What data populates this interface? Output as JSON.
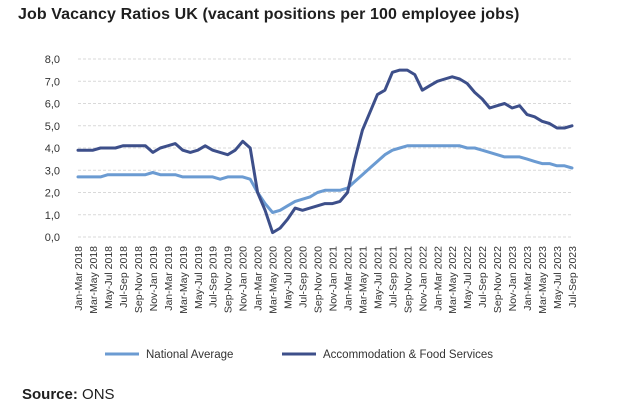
{
  "title": "Job Vacancy Ratios UK (vacant positions per 100 employee jobs)",
  "source": {
    "label": "Source:",
    "value": "ONS"
  },
  "chart_data": {
    "type": "line",
    "title": "Job Vacancy Ratios UK (vacant positions per 100 employee jobs)",
    "xlabel": "",
    "ylabel": "",
    "ylim": [
      0,
      8
    ],
    "yticks": [
      "0,0",
      "1,0",
      "2,0",
      "3,0",
      "4,0",
      "5,0",
      "6,0",
      "7,0",
      "8,0"
    ],
    "grid": true,
    "legend": "bottom",
    "categories": [
      "Jan-Mar 2018",
      "Mar-May 2018",
      "May-Jul 2018",
      "Jul-Sep 2018",
      "Sep-Nov 2018",
      "Nov-Jan 2019",
      "Jan-Mar 2019",
      "Mar-May 2019",
      "May-Jul 2019",
      "Jul-Sep 2019",
      "Sep-Nov 2019",
      "Nov-Jan 2020",
      "Jan-Mar 2020",
      "Mar-May 2020",
      "May-Jul 2020",
      "Jul-Sep 2020",
      "Sep-Nov 2020",
      "Nov-Jan 2021",
      "Jan-Mar 2021",
      "Mar-May 2021",
      "May-Jul 2021",
      "Jul-Sep 2021",
      "Sep-Nov 2021",
      "Nov-Jan 2022",
      "Jan-Mar 2022",
      "Mar-May 2022",
      "May-Jul 2022",
      "Jul-Sep 2022",
      "Sep-Nov 2022",
      "Nov-Jan 2023",
      "Jan-Mar 2023",
      "Mar-May 2023",
      "May-Jul 2023",
      "Jul-Sep 2023"
    ],
    "x": [
      0,
      1,
      2,
      3,
      4,
      5,
      6,
      7,
      8,
      9,
      10,
      11,
      12,
      13,
      14,
      15,
      16,
      17,
      18,
      19,
      20,
      21,
      22,
      23,
      24,
      25,
      26,
      27,
      28,
      29,
      30,
      31,
      32,
      33
    ],
    "series": [
      {
        "name": "National Average",
        "color": "#6b9bd2",
        "x": [
          0,
          0.5,
          1,
          1.5,
          2,
          2.5,
          3,
          3.5,
          4,
          4.5,
          5,
          5.5,
          6,
          6.5,
          7,
          7.5,
          8,
          8.5,
          9,
          9.5,
          10,
          10.5,
          11,
          11.5,
          12,
          12.5,
          13,
          13.5,
          14,
          14.5,
          15,
          15.5,
          16,
          16.5,
          17,
          17.5,
          18,
          18.5,
          19,
          19.5,
          20,
          20.5,
          21,
          21.5,
          22,
          22.5,
          23,
          23.5,
          24,
          24.5,
          25,
          25.5,
          26,
          26.5,
          27,
          27.5,
          28,
          28.5,
          29,
          29.5,
          30,
          30.5,
          31,
          31.5,
          32,
          32.5,
          33
        ],
        "values": [
          2.7,
          2.7,
          2.7,
          2.7,
          2.8,
          2.8,
          2.8,
          2.8,
          2.8,
          2.8,
          2.9,
          2.8,
          2.8,
          2.8,
          2.7,
          2.7,
          2.7,
          2.7,
          2.7,
          2.6,
          2.7,
          2.7,
          2.7,
          2.6,
          2.0,
          1.5,
          1.1,
          1.2,
          1.4,
          1.6,
          1.7,
          1.8,
          2.0,
          2.1,
          2.1,
          2.1,
          2.2,
          2.5,
          2.8,
          3.1,
          3.4,
          3.7,
          3.9,
          4.0,
          4.1,
          4.1,
          4.1,
          4.1,
          4.1,
          4.1,
          4.1,
          4.1,
          4.0,
          4.0,
          3.9,
          3.8,
          3.7,
          3.6,
          3.6,
          3.6,
          3.5,
          3.4,
          3.3,
          3.3,
          3.2,
          3.2,
          3.1
        ]
      },
      {
        "name": "Accommodation & Food Services",
        "color": "#3d4f8a",
        "x": [
          0,
          0.5,
          1,
          1.5,
          2,
          2.5,
          3,
          3.5,
          4,
          4.5,
          5,
          5.5,
          6,
          6.5,
          7,
          7.5,
          8,
          8.5,
          9,
          9.5,
          10,
          10.5,
          11,
          11.5,
          12,
          12.5,
          13,
          13.5,
          14,
          14.5,
          15,
          15.5,
          16,
          16.5,
          17,
          17.5,
          18,
          18.5,
          19,
          19.5,
          20,
          20.5,
          21,
          21.5,
          22,
          22.5,
          23,
          23.5,
          24,
          24.5,
          25,
          25.5,
          26,
          26.5,
          27,
          27.5,
          28,
          28.5,
          29,
          29.5,
          30,
          30.5,
          31,
          31.5,
          32,
          32.5,
          33
        ],
        "values": [
          3.9,
          3.9,
          3.9,
          4.0,
          4.0,
          4.0,
          4.1,
          4.1,
          4.1,
          4.1,
          3.8,
          4.0,
          4.1,
          4.2,
          3.9,
          3.8,
          3.9,
          4.1,
          3.9,
          3.8,
          3.7,
          3.9,
          4.3,
          4.0,
          2.0,
          1.2,
          0.2,
          0.4,
          0.8,
          1.3,
          1.2,
          1.3,
          1.4,
          1.5,
          1.5,
          1.6,
          2.0,
          3.5,
          4.8,
          5.6,
          6.4,
          6.6,
          7.4,
          7.5,
          7.5,
          7.3,
          6.6,
          6.8,
          7.0,
          7.1,
          7.2,
          7.1,
          6.9,
          6.5,
          6.2,
          5.8,
          5.9,
          6.0,
          5.8,
          5.9,
          5.5,
          5.4,
          5.2,
          5.1,
          4.9,
          4.9,
          5.0
        ]
      }
    ]
  }
}
